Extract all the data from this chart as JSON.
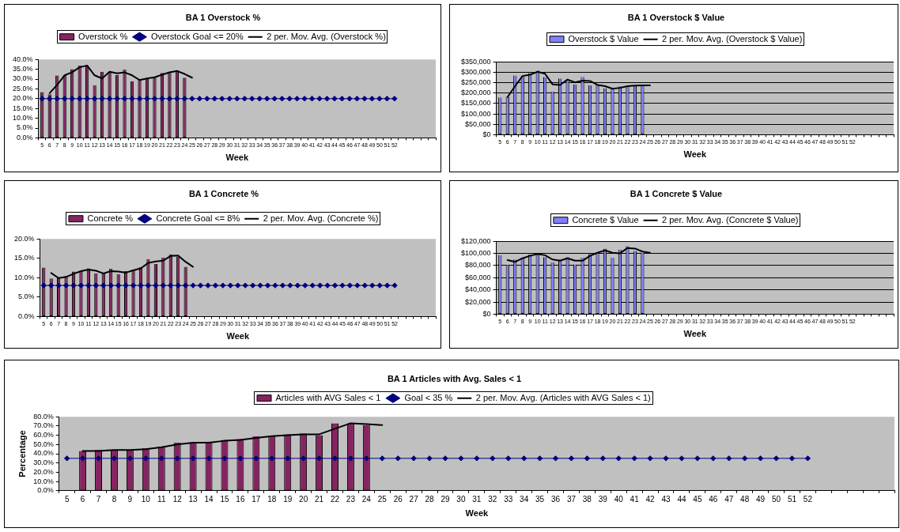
{
  "chart_data": [
    {
      "type": "bar",
      "title": "BA 1 Overstock %",
      "xlabel": "Week",
      "legend": "top",
      "grid": false,
      "categories": [
        "5",
        "6",
        "7",
        "8",
        "9",
        "10",
        "11",
        "12",
        "13",
        "14",
        "15",
        "16",
        "17",
        "18",
        "19",
        "20",
        "21",
        "22",
        "23",
        "24",
        "25",
        "26",
        "27",
        "28",
        "29",
        "30",
        "31",
        "32",
        "33",
        "34",
        "35",
        "36",
        "37",
        "38",
        "39",
        "40",
        "41",
        "42",
        "43",
        "44",
        "45",
        "46",
        "47",
        "48",
        "49",
        "50",
        "51",
        "52",
        null,
        null,
        null,
        null,
        null
      ],
      "ylim": [
        0,
        40
      ],
      "yticks": [
        {
          "value": 0,
          "label": "0.0%"
        },
        {
          "value": 5,
          "label": "5.0%"
        },
        {
          "value": 10,
          "label": "10.0%"
        },
        {
          "value": 15,
          "label": "15.0%"
        },
        {
          "value": 20,
          "label": "20.0%"
        },
        {
          "value": 25,
          "label": "25.0%"
        },
        {
          "value": 30,
          "label": "30.0%"
        },
        {
          "value": 35,
          "label": "35.0%"
        },
        {
          "value": 40,
          "label": "40.0%"
        }
      ],
      "series": [
        {
          "name": "Overstock %",
          "color": "#862461",
          "values": [
            23.3,
            22.2,
            31.8,
            32.0,
            35.0,
            36.9,
            36.9,
            26.9,
            33.7,
            33.7,
            32.0,
            34.8,
            28.9,
            30.1,
            30.5,
            31.2,
            33.1,
            33.7,
            34.5,
            30.7,
            null,
            null,
            null,
            null,
            null,
            null,
            null,
            null,
            null,
            null,
            null,
            null,
            null,
            null,
            null,
            null,
            null,
            null,
            null,
            null,
            null,
            null,
            null,
            null,
            null,
            null,
            null,
            null,
            null,
            null,
            null,
            null,
            null
          ]
        },
        {
          "name": "Overstock Goal <= 20%",
          "type": "line",
          "marker": "diamond",
          "color": "#000080",
          "values": [
            20,
            20,
            20,
            20,
            20,
            20,
            20,
            20,
            20,
            20,
            20,
            20,
            20,
            20,
            20,
            20,
            20,
            20,
            20,
            20,
            20,
            20,
            20,
            20,
            20,
            20,
            20,
            20,
            20,
            20,
            20,
            20,
            20,
            20,
            20,
            20,
            20,
            20,
            20,
            20,
            20,
            20,
            20,
            20,
            20,
            20,
            20,
            20,
            null,
            null,
            null,
            null,
            null
          ]
        },
        {
          "name": "2 per. Mov. Avg. (Overstock %)",
          "type": "line",
          "marker": "none",
          "color": "#000000",
          "values": [
            null,
            22.8,
            27.0,
            31.9,
            33.5,
            36.0,
            36.9,
            31.9,
            30.3,
            33.7,
            32.9,
            33.4,
            31.9,
            29.5,
            30.3,
            30.9,
            32.2,
            33.4,
            34.1,
            32.6,
            30.7,
            null,
            null,
            null,
            null,
            null,
            null,
            null,
            null,
            null,
            null,
            null,
            null,
            null,
            null,
            null,
            null,
            null,
            null,
            null,
            null,
            null,
            null,
            null,
            null,
            null,
            null,
            null,
            null,
            null,
            null,
            null,
            null
          ]
        }
      ]
    },
    {
      "type": "bar",
      "title": "BA 1 Overstock $ Value",
      "xlabel": "Week",
      "legend": "top",
      "grid": "y",
      "categories": [
        "5",
        "6",
        "7",
        "8",
        "9",
        "10",
        "11",
        "12",
        "13",
        "14",
        "15",
        "16",
        "17",
        "18",
        "19",
        "20",
        "21",
        "22",
        "23",
        "24",
        "25",
        "26",
        "27",
        "28",
        "29",
        "30",
        "31",
        "32",
        "33",
        "34",
        "35",
        "36",
        "37",
        "38",
        "39",
        "40",
        "41",
        "42",
        "43",
        "44",
        "45",
        "46",
        "47",
        "48",
        "49",
        "50",
        "51",
        "52",
        null,
        null,
        null,
        null,
        null
      ],
      "ylim": [
        0,
        350000
      ],
      "yticks": [
        {
          "value": 0,
          "label": "$0"
        },
        {
          "value": 50000,
          "label": "$50,000"
        },
        {
          "value": 100000,
          "label": "$100,000"
        },
        {
          "value": 150000,
          "label": "$150,000"
        },
        {
          "value": 200000,
          "label": "$200,000"
        },
        {
          "value": 250000,
          "label": "$250,000"
        },
        {
          "value": 300000,
          "label": "$300,000"
        },
        {
          "value": 350000,
          "label": "$350,000"
        }
      ],
      "series": [
        {
          "name": "Overstock $ Value",
          "color": "#8080ff",
          "values": [
            179000,
            182000,
            284000,
            280000,
            296000,
            308000,
            277000,
            207000,
            270000,
            260000,
            241000,
            278000,
            237000,
            241000,
            224000,
            218000,
            232000,
            234000,
            237000,
            237000,
            null,
            null,
            null,
            null,
            null,
            null,
            null,
            null,
            null,
            null,
            null,
            null,
            null,
            null,
            null,
            null,
            null,
            null,
            null,
            null,
            null,
            null,
            null,
            null,
            null,
            null,
            null,
            null,
            null,
            null,
            null,
            null,
            null
          ]
        },
        {
          "name": "2 per. Mov. Avg. (Overstock $ Value)",
          "type": "line",
          "marker": "none",
          "color": "#000000",
          "values": [
            null,
            181000,
            233000,
            282000,
            288000,
            302000,
            293000,
            242000,
            239000,
            265000,
            251000,
            260000,
            258000,
            239000,
            233000,
            221000,
            225000,
            233000,
            236000,
            237000,
            237000,
            null,
            null,
            null,
            null,
            null,
            null,
            null,
            null,
            null,
            null,
            null,
            null,
            null,
            null,
            null,
            null,
            null,
            null,
            null,
            null,
            null,
            null,
            null,
            null,
            null,
            null,
            null,
            null,
            null,
            null,
            null,
            null
          ]
        }
      ]
    },
    {
      "type": "bar",
      "title": "BA 1 Concrete %",
      "xlabel": "Week",
      "legend": "top",
      "grid": false,
      "categories": [
        "5",
        "6",
        "7",
        "8",
        "9",
        "10",
        "11",
        "12",
        "13",
        "14",
        "15",
        "16",
        "17",
        "18",
        "19",
        "20",
        "21",
        "22",
        "23",
        "24",
        "25",
        "26",
        "27",
        "28",
        "29",
        "30",
        "31",
        "32",
        "33",
        "34",
        "35",
        "36",
        "37",
        "38",
        "39",
        "40",
        "41",
        "42",
        "43",
        "44",
        "45",
        "46",
        "47",
        "48",
        "49",
        "50",
        "51",
        "52",
        null,
        null,
        null,
        null,
        null
      ],
      "ylim": [
        0,
        20
      ],
      "yticks": [
        {
          "value": 0,
          "label": "0.0%"
        },
        {
          "value": 5,
          "label": "5.0%"
        },
        {
          "value": 10,
          "label": "10.0%"
        },
        {
          "value": 15,
          "label": "15.0%"
        },
        {
          "value": 20,
          "label": "20.0%"
        }
      ],
      "series": [
        {
          "name": "Concrete %",
          "color": "#862461",
          "values": [
            12.6,
            9.8,
            10.0,
            10.4,
            11.6,
            11.7,
            12.4,
            11.1,
            11.1,
            12.3,
            10.9,
            11.7,
            12.1,
            12.7,
            14.8,
            13.5,
            15.2,
            16.0,
            15.4,
            12.8,
            null,
            null,
            null,
            null,
            null,
            null,
            null,
            null,
            null,
            null,
            null,
            null,
            null,
            null,
            null,
            null,
            null,
            null,
            null,
            null,
            null,
            null,
            null,
            null,
            null,
            null,
            null,
            null,
            null,
            null,
            null,
            null,
            null
          ]
        },
        {
          "name": "Concrete Goal <= 8%",
          "type": "line",
          "marker": "diamond",
          "color": "#000080",
          "values": [
            8,
            8,
            8,
            8,
            8,
            8,
            8,
            8,
            8,
            8,
            8,
            8,
            8,
            8,
            8,
            8,
            8,
            8,
            8,
            8,
            8,
            8,
            8,
            8,
            8,
            8,
            8,
            8,
            8,
            8,
            8,
            8,
            8,
            8,
            8,
            8,
            8,
            8,
            8,
            8,
            8,
            8,
            8,
            8,
            8,
            8,
            8,
            8,
            null,
            null,
            null,
            null,
            null
          ]
        },
        {
          "name": "2 per. Mov. Avg. (Concrete %)",
          "type": "line",
          "marker": "none",
          "color": "#000000",
          "values": [
            null,
            11.2,
            9.9,
            10.2,
            11.0,
            11.7,
            12.1,
            11.8,
            11.1,
            11.7,
            11.6,
            11.3,
            11.9,
            12.4,
            13.8,
            14.2,
            14.4,
            15.6,
            15.7,
            14.1,
            12.8,
            null,
            null,
            null,
            null,
            null,
            null,
            null,
            null,
            null,
            null,
            null,
            null,
            null,
            null,
            null,
            null,
            null,
            null,
            null,
            null,
            null,
            null,
            null,
            null,
            null,
            null,
            null,
            null,
            null,
            null,
            null,
            null
          ]
        }
      ]
    },
    {
      "type": "bar",
      "title": "BA 1 Concrete $ Value",
      "xlabel": "Week",
      "legend": "top",
      "grid": "y",
      "categories": [
        "5",
        "6",
        "7",
        "8",
        "9",
        "10",
        "11",
        "12",
        "13",
        "14",
        "15",
        "16",
        "17",
        "18",
        "19",
        "20",
        "21",
        "22",
        "23",
        "24",
        "25",
        "26",
        "27",
        "28",
        "29",
        "30",
        "31",
        "32",
        "33",
        "34",
        "35",
        "36",
        "37",
        "38",
        "39",
        "40",
        "41",
        "42",
        "43",
        "44",
        "45",
        "46",
        "47",
        "48",
        "49",
        "50",
        "51",
        "52",
        null,
        null,
        null,
        null,
        null
      ],
      "ylim": [
        0,
        120000
      ],
      "yticks": [
        {
          "value": 0,
          "label": "$0"
        },
        {
          "value": 20000,
          "label": "$20,000"
        },
        {
          "value": 40000,
          "label": "$40,000"
        },
        {
          "value": 60000,
          "label": "$60,000"
        },
        {
          "value": 80000,
          "label": "$80,000"
        },
        {
          "value": 100000,
          "label": "$100,000"
        },
        {
          "value": 120000,
          "label": "$120,000"
        }
      ],
      "series": [
        {
          "name": "Concrete $ Value",
          "color": "#8080ff",
          "values": [
            97000,
            81000,
            90000,
            93000,
            98000,
            99000,
            94000,
            85000,
            90000,
            94000,
            82000,
            93000,
            99000,
            102000,
            108000,
            93000,
            106000,
            112000,
            104000,
            101000,
            null,
            null,
            null,
            null,
            null,
            null,
            null,
            null,
            null,
            null,
            null,
            null,
            null,
            null,
            null,
            null,
            null,
            null,
            null,
            null,
            null,
            null,
            null,
            null,
            null,
            null,
            null,
            null,
            null,
            null,
            null,
            null,
            null
          ]
        },
        {
          "name": "2 per. Mov. Avg. (Concrete $ Value)",
          "type": "line",
          "marker": "none",
          "color": "#000000",
          "values": [
            null,
            89000,
            86000,
            92000,
            96000,
            99000,
            97000,
            90000,
            88000,
            92000,
            88000,
            88000,
            96000,
            101000,
            105000,
            101000,
            100000,
            109000,
            108000,
            103000,
            101000,
            null,
            null,
            null,
            null,
            null,
            null,
            null,
            null,
            null,
            null,
            null,
            null,
            null,
            null,
            null,
            null,
            null,
            null,
            null,
            null,
            null,
            null,
            null,
            null,
            null,
            null,
            null,
            null,
            null,
            null,
            null,
            null
          ]
        }
      ]
    },
    {
      "type": "bar",
      "title": "BA 1 Articles with Avg. Sales < 1",
      "xlabel": "Week",
      "ylabel": "Percentage",
      "legend": "top",
      "grid": false,
      "categories": [
        "5",
        "6",
        "7",
        "8",
        "9",
        "10",
        "11",
        "12",
        "13",
        "14",
        "15",
        "16",
        "17",
        "18",
        "19",
        "20",
        "21",
        "22",
        "23",
        "24",
        "25",
        "26",
        "27",
        "28",
        "29",
        "30",
        "31",
        "32",
        "33",
        "34",
        "35",
        "36",
        "37",
        "38",
        "39",
        "40",
        "41",
        "42",
        "43",
        "44",
        "45",
        "46",
        "47",
        "48",
        "49",
        "50",
        "51",
        "52",
        null,
        null,
        null,
        null,
        null
      ],
      "ylim": [
        0,
        80
      ],
      "yticks": [
        {
          "value": 0,
          "label": "0.0%"
        },
        {
          "value": 10,
          "label": "10.0%"
        },
        {
          "value": 20,
          "label": "20.0%"
        },
        {
          "value": 30,
          "label": "30.0%"
        },
        {
          "value": 40,
          "label": "40.0%"
        },
        {
          "value": 50,
          "label": "50.0%"
        },
        {
          "value": 60,
          "label": "60.0%"
        },
        {
          "value": 70,
          "label": "70.0%"
        },
        {
          "value": 80,
          "label": "80.0%"
        }
      ],
      "series": [
        {
          "name": "Articles with AVG Sales < 1",
          "color": "#862461",
          "values": [
            null,
            43,
            44,
            44,
            44,
            46,
            48,
            52,
            52,
            53,
            55,
            56,
            59,
            59,
            61,
            62,
            60,
            73,
            73,
            71,
            null,
            null,
            null,
            null,
            null,
            null,
            null,
            null,
            null,
            null,
            null,
            null,
            null,
            null,
            null,
            null,
            null,
            null,
            null,
            null,
            null,
            null,
            null,
            null,
            null,
            null,
            null,
            null,
            null,
            null,
            null,
            null,
            null
          ]
        },
        {
          "name": "Goal < 35 %",
          "type": "line",
          "marker": "diamond",
          "color": "#000080",
          "values": [
            35,
            35,
            35,
            35,
            35,
            35,
            35,
            35,
            35,
            35,
            35,
            35,
            35,
            35,
            35,
            35,
            35,
            35,
            35,
            35,
            35,
            35,
            35,
            35,
            35,
            35,
            35,
            35,
            35,
            35,
            35,
            35,
            35,
            35,
            35,
            35,
            35,
            35,
            35,
            35,
            35,
            35,
            35,
            35,
            35,
            35,
            35,
            35,
            null,
            null,
            null,
            null,
            null
          ]
        },
        {
          "name": "2 per. Mov. Avg. (Articles with AVG Sales < 1)",
          "type": "line",
          "marker": "none",
          "color": "#000000",
          "values": [
            null,
            43,
            43,
            44,
            44,
            45,
            47,
            50,
            52,
            52,
            54,
            55,
            57,
            59,
            60,
            61,
            61,
            67,
            73,
            72,
            71,
            null,
            null,
            null,
            null,
            null,
            null,
            null,
            null,
            null,
            null,
            null,
            null,
            null,
            null,
            null,
            null,
            null,
            null,
            null,
            null,
            null,
            null,
            null,
            null,
            null,
            null,
            null,
            null,
            null,
            null,
            null,
            null
          ]
        }
      ]
    }
  ]
}
